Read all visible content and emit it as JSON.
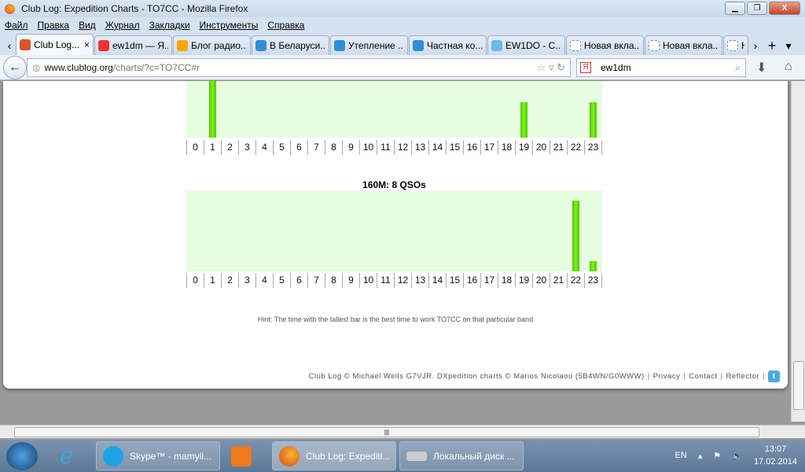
{
  "window": {
    "title": "Club Log: Expedition Charts - TO7CC - Mozilla Firefox",
    "min": "▁",
    "max": "❐",
    "close": "X"
  },
  "menu": [
    "Файл",
    "Правка",
    "Вид",
    "Журнал",
    "Закладки",
    "Инструменты",
    "Справка"
  ],
  "tabs": [
    {
      "label": "Club Log...",
      "icon": "clublog-icon",
      "color": "#d9532c"
    },
    {
      "label": "ew1dm — Я...",
      "icon": "yandex-icon",
      "color": "#e33"
    },
    {
      "label": "Блог радио...",
      "icon": "blogger-icon",
      "color": "#f7a600"
    },
    {
      "label": "В Беларуси...",
      "icon": "globe-icon",
      "color": "#2f8fd6"
    },
    {
      "label": "Утепление ...",
      "icon": "globe-icon",
      "color": "#2f8fd6"
    },
    {
      "label": "Частная ко...",
      "icon": "globe-icon",
      "color": "#2f8fd6"
    },
    {
      "label": "EW1DO - C...",
      "icon": "web-icon",
      "color": "#6bb8ea"
    },
    {
      "label": "Новая вкла...",
      "icon": "blank-page-icon",
      "color": "#ffffff"
    },
    {
      "label": "Новая вкла...",
      "icon": "blank-page-icon",
      "color": "#ffffff"
    },
    {
      "label": "Н",
      "icon": "blank-page-icon",
      "color": "#ffffff"
    }
  ],
  "tab_close": "×",
  "tab_left": "‹",
  "tab_right": "›",
  "new_tab": "+",
  "tab_list": "▾",
  "url": {
    "domain": "www.clublog.org",
    "path": "/charts/?c=TO7CC#r"
  },
  "search": {
    "value": "ew1dm"
  },
  "chart_data": [
    {
      "type": "bar",
      "title": "",
      "categories": [
        0,
        1,
        2,
        3,
        4,
        5,
        6,
        7,
        8,
        9,
        10,
        11,
        12,
        13,
        14,
        15,
        16,
        17,
        18,
        19,
        20,
        21,
        22,
        23
      ],
      "values": [
        0,
        4,
        0,
        0,
        0,
        0,
        0,
        0,
        0,
        0,
        0,
        0,
        0,
        0,
        0,
        0,
        0,
        0,
        0,
        2,
        0,
        0,
        0,
        2
      ],
      "xlabel": "",
      "ylabel": "",
      "bar_color": "#66e60d",
      "background": "#e6fde0"
    },
    {
      "type": "bar",
      "title": "160M: 8 QSOs",
      "categories": [
        0,
        1,
        2,
        3,
        4,
        5,
        6,
        7,
        8,
        9,
        10,
        11,
        12,
        13,
        14,
        15,
        16,
        17,
        18,
        19,
        20,
        21,
        22,
        23
      ],
      "values": [
        0,
        0,
        0,
        0,
        0,
        0,
        0,
        0,
        0,
        0,
        0,
        0,
        0,
        0,
        0,
        0,
        0,
        0,
        0,
        0,
        0,
        0,
        7,
        1
      ],
      "xlabel": "",
      "ylabel": "",
      "bar_color": "#66e60d",
      "background": "#e6fde0"
    }
  ],
  "hint": "Hint: The time with the tallest bar is the best time to work TO7CC on that particular band",
  "footer": {
    "credit": "Club Log © Michael Wells G7VJR. DXpedition charts © Marios Nicolaou (5B4WN/G0WWW)",
    "privacy": "Privacy",
    "contact": "Contact",
    "reflector": "Reflector",
    "sep": "|",
    "twitter": "t"
  },
  "taskbar": {
    "skype": "Skype™ - mamyli...",
    "firefox": "Club Log: Expediti...",
    "explorer": "Локальный диск ...",
    "lang": "EN",
    "time": "13:07",
    "date": "17.02.2014"
  }
}
